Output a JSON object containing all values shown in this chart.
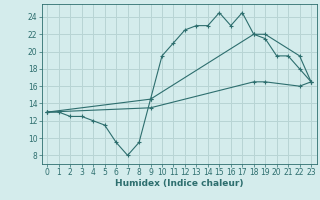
{
  "xlabel": "Humidex (Indice chaleur)",
  "background_color": "#d4ecec",
  "grid_color": "#b8d4d4",
  "line_color": "#2d6e6e",
  "xlim": [
    -0.5,
    23.5
  ],
  "ylim": [
    7,
    25.5
  ],
  "xticks": [
    0,
    1,
    2,
    3,
    4,
    5,
    6,
    7,
    8,
    9,
    10,
    11,
    12,
    13,
    14,
    15,
    16,
    17,
    18,
    19,
    20,
    21,
    22,
    23
  ],
  "yticks": [
    8,
    10,
    12,
    14,
    16,
    18,
    20,
    22,
    24
  ],
  "line1_x": [
    0,
    1,
    2,
    3,
    4,
    5,
    6,
    7,
    8,
    9,
    10,
    11,
    12,
    13,
    14,
    15,
    16,
    17,
    18,
    19,
    20,
    21,
    22,
    23
  ],
  "line1_y": [
    13,
    13,
    12.5,
    12.5,
    12,
    11.5,
    9.5,
    8,
    9.5,
    14.5,
    19.5,
    21,
    22.5,
    23,
    23,
    24.5,
    23,
    24.5,
    22,
    21.5,
    19.5,
    19.5,
    18,
    16.5
  ],
  "line2_x": [
    0,
    9,
    18,
    19,
    22,
    23
  ],
  "line2_y": [
    13,
    14.5,
    22,
    22,
    19.5,
    16.5
  ],
  "line3_x": [
    0,
    9,
    18,
    19,
    22,
    23
  ],
  "line3_y": [
    13,
    13.5,
    16.5,
    16.5,
    16,
    16.5
  ]
}
